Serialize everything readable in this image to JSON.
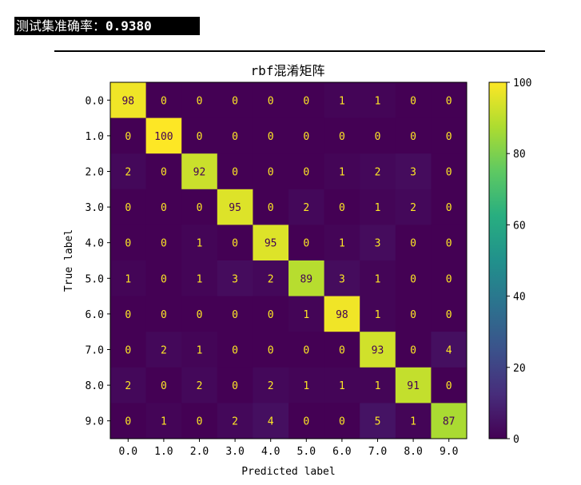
{
  "console": {
    "label": "测试集准确率：",
    "value": "0.9380"
  },
  "chart_data": {
    "type": "heatmap",
    "title": "rbf混淆矩阵",
    "xlabel": "Predicted label",
    "ylabel": "True label",
    "x_tick_labels": [
      "0.0",
      "1.0",
      "2.0",
      "3.0",
      "4.0",
      "5.0",
      "6.0",
      "7.0",
      "8.0",
      "9.0"
    ],
    "y_tick_labels": [
      "0.0",
      "1.0",
      "2.0",
      "3.0",
      "4.0",
      "5.0",
      "6.0",
      "7.0",
      "8.0",
      "9.0"
    ],
    "matrix": [
      [
        98,
        0,
        0,
        0,
        0,
        0,
        1,
        1,
        0,
        0
      ],
      [
        0,
        100,
        0,
        0,
        0,
        0,
        0,
        0,
        0,
        0
      ],
      [
        2,
        0,
        92,
        0,
        0,
        0,
        1,
        2,
        3,
        0
      ],
      [
        0,
        0,
        0,
        95,
        0,
        2,
        0,
        1,
        2,
        0
      ],
      [
        0,
        0,
        1,
        0,
        95,
        0,
        1,
        3,
        0,
        0
      ],
      [
        1,
        0,
        1,
        3,
        2,
        89,
        3,
        1,
        0,
        0
      ],
      [
        0,
        0,
        0,
        0,
        0,
        1,
        98,
        1,
        0,
        0
      ],
      [
        0,
        2,
        1,
        0,
        0,
        0,
        0,
        93,
        0,
        4
      ],
      [
        2,
        0,
        2,
        0,
        2,
        1,
        1,
        1,
        91,
        0
      ],
      [
        0,
        1,
        0,
        2,
        4,
        0,
        0,
        5,
        1,
        87
      ]
    ],
    "colormap": "viridis",
    "colorbar": {
      "range": [
        0,
        100
      ],
      "ticks": [
        0,
        20,
        40,
        60,
        80,
        100
      ]
    },
    "grid": false
  }
}
